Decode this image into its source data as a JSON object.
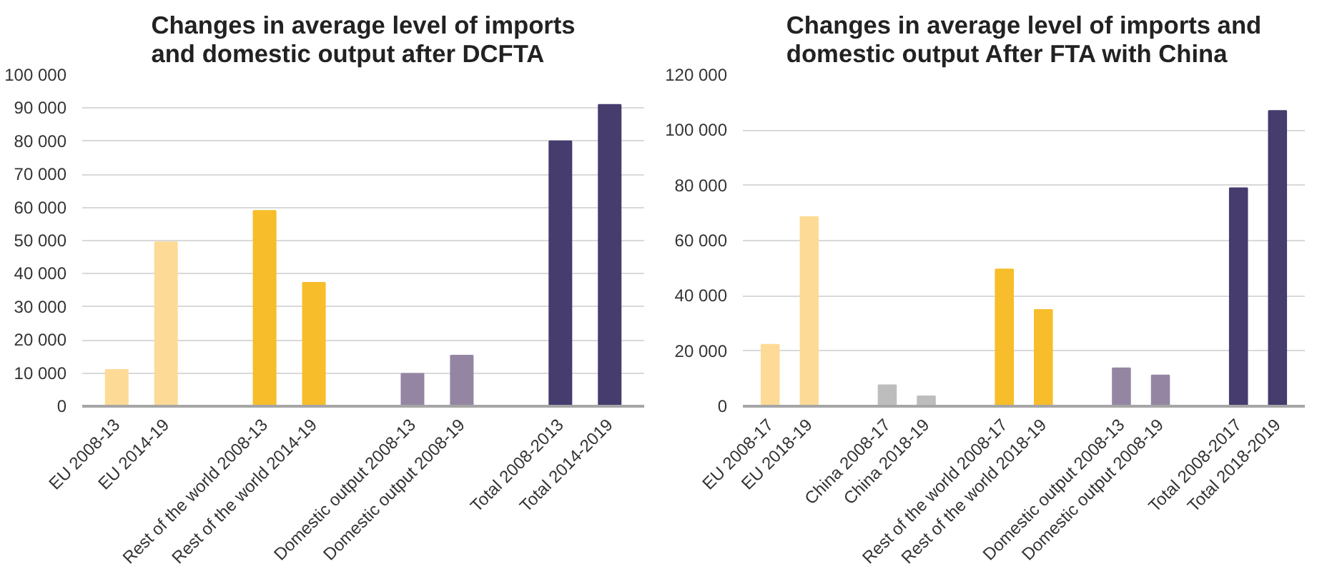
{
  "chart_data": [
    {
      "type": "bar",
      "title": "Changes in average level of imports and domestic output after DCFTA",
      "categories": [
        "EU 2008-13",
        "EU 2014-19",
        null,
        "Rest of the world 2008-13",
        "Rest of the world 2014-19",
        null,
        "Domestic output 2008-13",
        "Domestic output 2008-19",
        null,
        "Total 2008-2013",
        "Total 2014-2019"
      ],
      "values": [
        11000,
        49500,
        null,
        59000,
        37300,
        null,
        9800,
        15300,
        null,
        80000,
        91000
      ],
      "colors": [
        "#fddb97",
        "#fddb97",
        null,
        "#f7bd2a",
        "#f7bd2a",
        null,
        "#9486a3",
        "#9486a3",
        null,
        "#463c6e",
        "#463c6e"
      ],
      "ylim": [
        0,
        100000
      ],
      "yticks": [
        0,
        {
          "value": 10000,
          "label": "10 000"
        },
        {
          "value": 20000,
          "label": "20 000"
        },
        {
          "value": 30000,
          "label": "30 000"
        },
        {
          "value": 40000,
          "label": "40 000"
        },
        {
          "value": 50000,
          "label": "50 000"
        },
        {
          "value": 60000,
          "label": "60 000"
        },
        {
          "value": 70000,
          "label": "70 000"
        },
        {
          "value": 80000,
          "label": "80 000"
        },
        {
          "value": 90000,
          "label": "90 000"
        },
        {
          "value": 100000,
          "label": "100 000"
        }
      ],
      "grid": "y"
    },
    {
      "type": "bar",
      "title": "Changes in average level of imports and domestic output After FTA with China",
      "categories": [
        "EU 2008-17",
        "EU 2018-19",
        null,
        "China 2008-17",
        "China 2018-19",
        null,
        "Rest of the world 2008-17",
        "Rest of the world 2018-19",
        null,
        "Domestic output 2008-13",
        "Domestic output 2008-19",
        null,
        "Total 2008-2017",
        "Total 2018-2019"
      ],
      "values": [
        22300,
        68600,
        null,
        7600,
        3600,
        null,
        49600,
        34900,
        null,
        13800,
        11200,
        null,
        79000,
        107000
      ],
      "colors": [
        "#fddb97",
        "#fddb97",
        null,
        "#bdbdbd",
        "#bdbdbd",
        null,
        "#f7bd2a",
        "#f7bd2a",
        null,
        "#9486a3",
        "#9486a3",
        null,
        "#463c6e",
        "#463c6e"
      ],
      "ylim": [
        0,
        120000
      ],
      "yticks": [
        0,
        {
          "value": 20000,
          "label": "20 000"
        },
        {
          "value": 40000,
          "label": "40 000"
        },
        {
          "value": 60000,
          "label": "60 000"
        },
        {
          "value": 80000,
          "label": "80 000"
        },
        {
          "value": 100000,
          "label": "100 000"
        },
        {
          "value": 120000,
          "label": "120 000"
        }
      ],
      "grid": "y"
    }
  ]
}
